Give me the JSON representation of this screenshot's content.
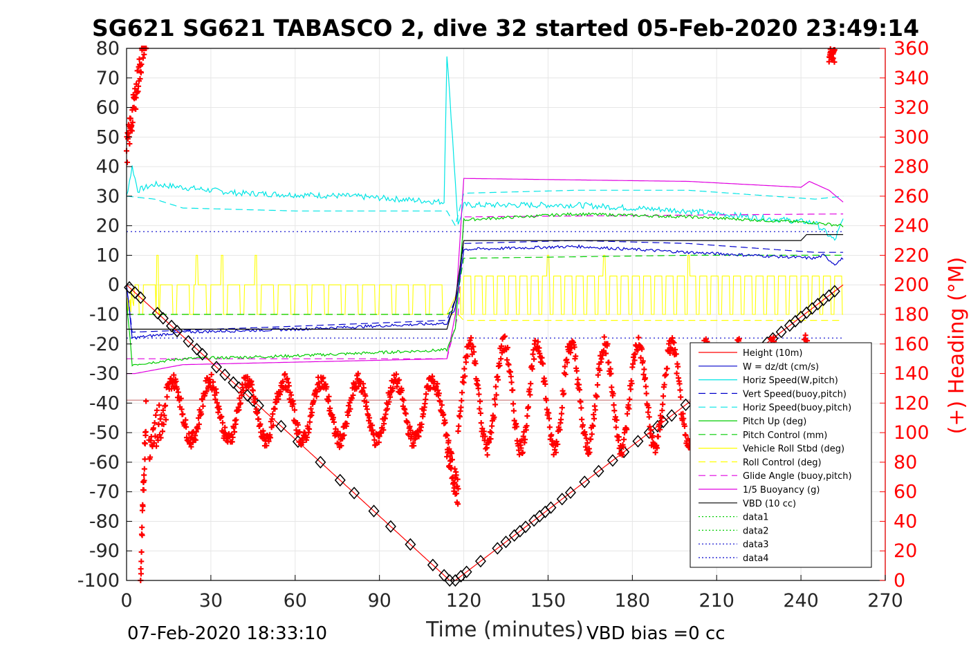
{
  "chart_data": {
    "type": "line",
    "title": "SG621 SG621 TABASCO 2, dive 32 started 05-Feb-2020 23:49:14",
    "xlabel": "Time (minutes)",
    "ylabel": "",
    "y2label": "(+) Heading (°M)",
    "xlim": [
      0,
      270
    ],
    "ylim": [
      -100,
      80
    ],
    "y2lim": [
      0,
      360
    ],
    "xticks": [
      "0",
      "30",
      "60",
      "90",
      "120",
      "150",
      "180",
      "210",
      "240",
      "270"
    ],
    "yticks": [
      "80",
      "70",
      "60",
      "50",
      "40",
      "30",
      "20",
      "10",
      "0",
      "-10",
      "-20",
      "-30",
      "-40",
      "-50",
      "-60",
      "-70",
      "-80",
      "-90",
      "-100"
    ],
    "y2ticks": [
      "360",
      "340",
      "320",
      "300",
      "280",
      "260",
      "240",
      "220",
      "200",
      "180",
      "160",
      "140",
      "120",
      "100",
      "80",
      "60",
      "40",
      "20",
      "0"
    ],
    "footer_left": "07-Feb-2020 18:33:10",
    "footer_right": "VBD bias =0 cc",
    "legend_position": "lower-right",
    "grid": true,
    "colors": {
      "height": "#ff0000",
      "w": "#0000cc",
      "horiz_w": "#00e5e5",
      "vert_buoy": "#0000cc",
      "horiz_buoy": "#00e5e5",
      "pitch": "#00cc00",
      "pitch_ctrl": "#00cc00",
      "roll": "#ffff00",
      "roll_ctrl": "#ffff00",
      "glide": "#e000e0",
      "buoy": "#e000e0",
      "vbd": "#000000",
      "data": "#00cc00",
      "data_blue": "#0000cc",
      "heading": "#ff0000"
    },
    "series": [
      {
        "name": "Height (10m)",
        "style": "solid",
        "color": "#ff0000"
      },
      {
        "name": "W = dz/dt (cm/s)",
        "style": "solid",
        "color": "#0000cc"
      },
      {
        "name": "Horiz Speed(W,pitch)",
        "style": "solid",
        "color": "#00e5e5"
      },
      {
        "name": "Vert Speed(buoy,pitch)",
        "style": "dashed",
        "color": "#0000cc"
      },
      {
        "name": "Horiz Speed(buoy,pitch)",
        "style": "dashed",
        "color": "#00e5e5"
      },
      {
        "name": "Pitch Up (deg)",
        "style": "solid",
        "color": "#00cc00"
      },
      {
        "name": "Pitch Control (mm)",
        "style": "dashed",
        "color": "#00cc00"
      },
      {
        "name": "Vehicle Roll Stbd (deg)",
        "style": "solid",
        "color": "#ffff00"
      },
      {
        "name": "Roll Control (deg)",
        "style": "dashed",
        "color": "#ffff00"
      },
      {
        "name": "Glide Angle (buoy,pitch)",
        "style": "dashed",
        "color": "#e000e0"
      },
      {
        "name": "1/5 Buoyancy (g)",
        "style": "solid",
        "color": "#e000e0"
      },
      {
        "name": "VBD (10 cc)",
        "style": "solid",
        "color": "#000000"
      },
      {
        "name": "data1",
        "style": "dotted",
        "color": "#00cc00"
      },
      {
        "name": "data2",
        "style": "dotted",
        "color": "#00cc00"
      },
      {
        "name": "data3",
        "style": "dotted",
        "color": "#0000cc"
      },
      {
        "name": "data4",
        "style": "dotted",
        "color": "#0000cc"
      }
    ],
    "profiles": {
      "height": [
        [
          0,
          0
        ],
        [
          115,
          -100
        ],
        [
          117,
          -100
        ],
        [
          255,
          0
        ]
      ],
      "w": [
        [
          0,
          0
        ],
        [
          2,
          -18
        ],
        [
          20,
          -16
        ],
        [
          60,
          -15
        ],
        [
          114,
          -13
        ],
        [
          117,
          -8
        ],
        [
          120,
          12
        ],
        [
          160,
          13
        ],
        [
          200,
          11
        ],
        [
          245,
          9
        ],
        [
          248,
          10
        ],
        [
          252,
          7
        ],
        [
          255,
          9
        ]
      ],
      "horiz_w": [
        [
          0,
          30
        ],
        [
          2,
          40
        ],
        [
          4,
          32
        ],
        [
          10,
          34
        ],
        [
          40,
          31
        ],
        [
          80,
          30
        ],
        [
          113,
          28
        ],
        [
          114,
          78
        ],
        [
          116,
          50
        ],
        [
          118,
          20
        ],
        [
          120,
          27
        ],
        [
          160,
          27
        ],
        [
          200,
          25
        ],
        [
          245,
          21
        ],
        [
          252,
          15
        ],
        [
          255,
          22
        ]
      ],
      "vert_buoy": [
        [
          0,
          0
        ],
        [
          2,
          -16
        ],
        [
          60,
          -14
        ],
        [
          114,
          -12
        ],
        [
          117,
          -5
        ],
        [
          120,
          14
        ],
        [
          160,
          15
        ],
        [
          200,
          14
        ],
        [
          245,
          11
        ],
        [
          255,
          11
        ]
      ],
      "horiz_buoy": [
        [
          0,
          30
        ],
        [
          10,
          29
        ],
        [
          20,
          26
        ],
        [
          60,
          25
        ],
        [
          114,
          25
        ],
        [
          117,
          20
        ],
        [
          120,
          31
        ],
        [
          160,
          32
        ],
        [
          200,
          32
        ],
        [
          245,
          29
        ],
        [
          255,
          30
        ]
      ],
      "pitch": [
        [
          0,
          -5
        ],
        [
          2,
          -27
        ],
        [
          20,
          -25
        ],
        [
          60,
          -24
        ],
        [
          114,
          -22
        ],
        [
          117,
          -15
        ],
        [
          120,
          22
        ],
        [
          160,
          24
        ],
        [
          200,
          23
        ],
        [
          245,
          21
        ],
        [
          255,
          20
        ]
      ],
      "pitch_ctrl": [
        [
          0,
          -10
        ],
        [
          114,
          -10
        ],
        [
          117,
          -8
        ],
        [
          120,
          9
        ],
        [
          200,
          10
        ],
        [
          255,
          10
        ]
      ],
      "roll": [
        [
          0,
          0
        ],
        [
          114,
          0
        ],
        [
          118,
          0
        ],
        [
          120,
          3
        ],
        [
          255,
          3
        ]
      ],
      "roll_ctrl": [
        [
          0,
          -10
        ],
        [
          114,
          -10
        ],
        [
          118,
          -10
        ],
        [
          120,
          -12
        ],
        [
          255,
          -12
        ]
      ],
      "glide": [
        [
          0,
          -25
        ],
        [
          114,
          -25
        ],
        [
          118,
          -10
        ],
        [
          120,
          23
        ],
        [
          255,
          24
        ]
      ],
      "buoy": [
        [
          0,
          -30
        ],
        [
          3,
          -30
        ],
        [
          20,
          -27
        ],
        [
          114,
          -25
        ],
        [
          117,
          -10
        ],
        [
          120,
          36
        ],
        [
          200,
          35
        ],
        [
          240,
          33
        ],
        [
          243,
          35
        ],
        [
          250,
          32
        ],
        [
          255,
          28
        ]
      ],
      "vbd": [
        [
          0,
          -15
        ],
        [
          114,
          -15
        ],
        [
          117,
          -5
        ],
        [
          120,
          15
        ],
        [
          240,
          15
        ],
        [
          242,
          17
        ],
        [
          255,
          17
        ]
      ],
      "data3": [
        [
          0,
          18
        ],
        [
          255,
          18
        ]
      ],
      "data4": [
        [
          0,
          -18
        ],
        [
          255,
          -18
        ]
      ],
      "data1": [
        [
          0,
          -39
        ],
        [
          255,
          -39
        ]
      ]
    }
  }
}
